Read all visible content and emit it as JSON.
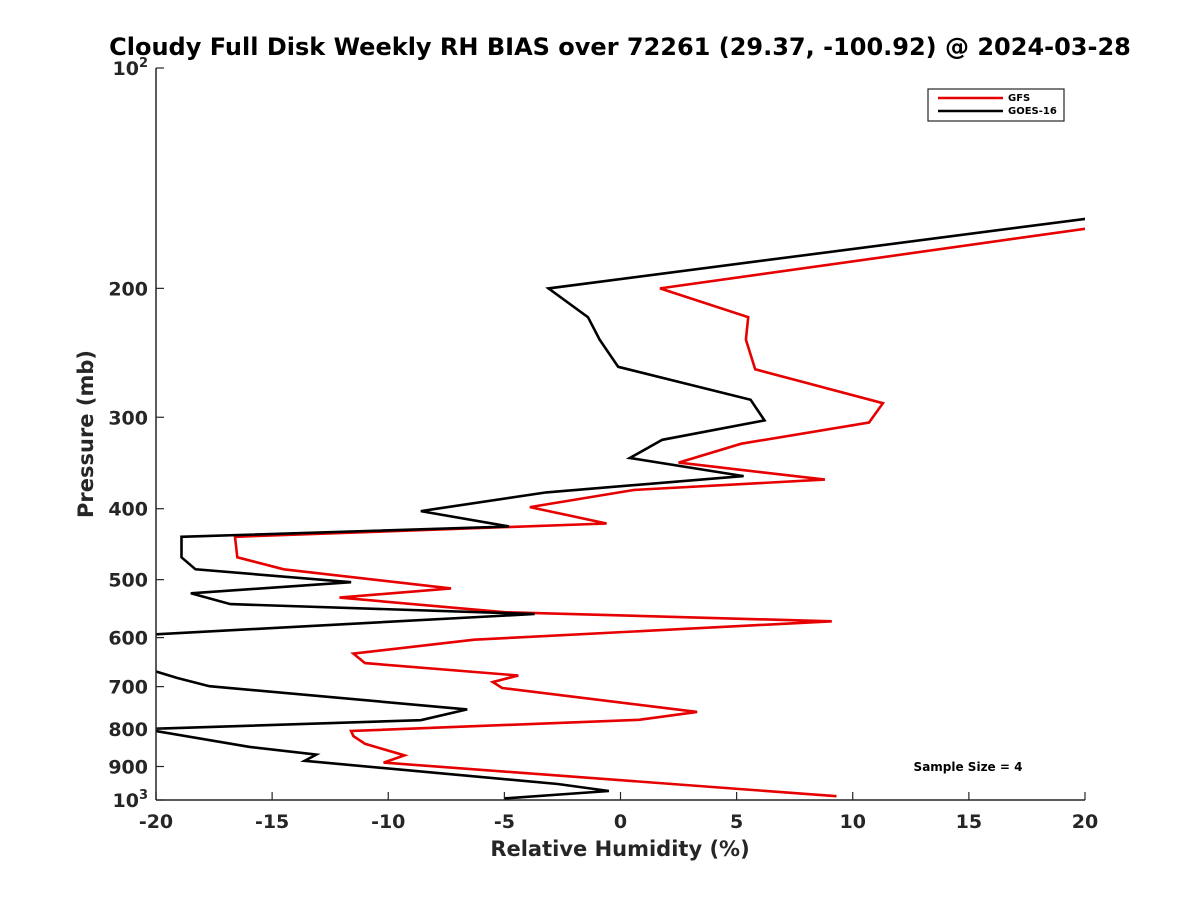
{
  "chart_data": {
    "type": "line",
    "title": "Cloudy Full Disk Weekly RH BIAS over 72261 (29.37, -100.92) @ 2024-03-28",
    "xlabel": "Relative Humidity (%)",
    "ylabel": "Pressure (mb)",
    "xlim": [
      -20,
      20
    ],
    "ylim": [
      100,
      1000
    ],
    "yscale": "log",
    "y_reversed": true,
    "xticks": [
      -20,
      -15,
      -10,
      -5,
      0,
      5,
      10,
      15,
      20
    ],
    "yticks": [
      {
        "value": 100,
        "label": "10",
        "sup": "2"
      },
      {
        "value": 200,
        "label": "200",
        "sup": ""
      },
      {
        "value": 300,
        "label": "300",
        "sup": ""
      },
      {
        "value": 400,
        "label": "400",
        "sup": ""
      },
      {
        "value": 500,
        "label": "500",
        "sup": ""
      },
      {
        "value": 600,
        "label": "600",
        "sup": ""
      },
      {
        "value": 700,
        "label": "700",
        "sup": ""
      },
      {
        "value": 800,
        "label": "800",
        "sup": ""
      },
      {
        "value": 900,
        "label": "900",
        "sup": ""
      },
      {
        "value": 1000,
        "label": "10",
        "sup": "3"
      }
    ],
    "legend_position": "top-right",
    "annotation": "Sample Size = 4",
    "series": [
      {
        "name": "GFS",
        "color": "#e60000",
        "points": [
          [
            20.5,
            165
          ],
          [
            1.7,
            200
          ],
          [
            5.5,
            219
          ],
          [
            5.4,
            235
          ],
          [
            5.8,
            258
          ],
          [
            11.3,
            287
          ],
          [
            10.7,
            305
          ],
          [
            5.2,
            326
          ],
          [
            2.5,
            346
          ],
          [
            8.8,
            365
          ],
          [
            0.6,
            377
          ],
          [
            -3.9,
            398
          ],
          [
            -0.6,
            419
          ],
          [
            -16.6,
            437
          ],
          [
            -16.5,
            466
          ],
          [
            -14.5,
            484
          ],
          [
            -7.3,
            514
          ],
          [
            -12.1,
            529
          ],
          [
            -5.0,
            554
          ],
          [
            9.1,
            570
          ],
          [
            -6.3,
            604
          ],
          [
            -11.5,
            631
          ],
          [
            -11.0,
            650
          ],
          [
            -4.4,
            676
          ],
          [
            -5.5,
            690
          ],
          [
            -5.1,
            703
          ],
          [
            3.3,
            758
          ],
          [
            0.8,
            777
          ],
          [
            -11.6,
            805
          ],
          [
            -11.5,
            818
          ],
          [
            -11.0,
            838
          ],
          [
            -9.3,
            869
          ],
          [
            -10.2,
            889
          ],
          [
            9.3,
            988
          ]
        ]
      },
      {
        "name": "GOES-16",
        "color": "#000000",
        "points": [
          [
            20.5,
            160
          ],
          [
            -3.1,
            200
          ],
          [
            -1.4,
            219
          ],
          [
            -0.9,
            235
          ],
          [
            -0.1,
            256
          ],
          [
            5.6,
            284
          ],
          [
            6.2,
            303
          ],
          [
            1.8,
            322
          ],
          [
            0.4,
            341
          ],
          [
            5.3,
            361
          ],
          [
            -3.2,
            380
          ],
          [
            -8.6,
            403
          ],
          [
            -4.8,
            423
          ],
          [
            -18.9,
            437
          ],
          [
            -18.9,
            466
          ],
          [
            -18.3,
            484
          ],
          [
            -11.6,
            504
          ],
          [
            -18.5,
            522
          ],
          [
            -16.8,
            540
          ],
          [
            -3.7,
            557
          ],
          [
            -20.5,
            595
          ],
          [
            -20.5,
            660
          ],
          [
            -19.1,
            681
          ],
          [
            -17.7,
            699
          ],
          [
            -6.6,
            752
          ],
          [
            -8.6,
            778
          ],
          [
            -20.5,
            800
          ],
          [
            -16.0,
            846
          ],
          [
            -13.1,
            867
          ],
          [
            -13.6,
            884
          ],
          [
            -2.7,
            951
          ],
          [
            -0.5,
            972
          ],
          [
            -5.0,
            995
          ]
        ]
      }
    ]
  }
}
